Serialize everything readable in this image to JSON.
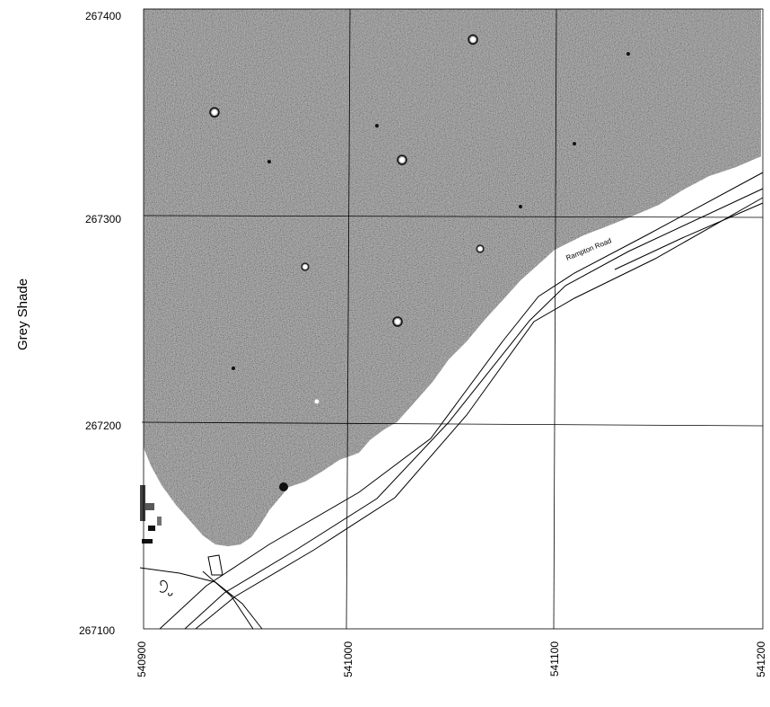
{
  "side_title": "Grey Shade",
  "road_label": "Rampton Road",
  "northing_labels": [
    "267400",
    "267300",
    "267200",
    "267100"
  ],
  "easting_labels": [
    "540900",
    "541000",
    "541100",
    "541200"
  ],
  "colors": {
    "survey_fill": "#7a7a7a",
    "linework": "#000000",
    "background": "#ffffff"
  }
}
